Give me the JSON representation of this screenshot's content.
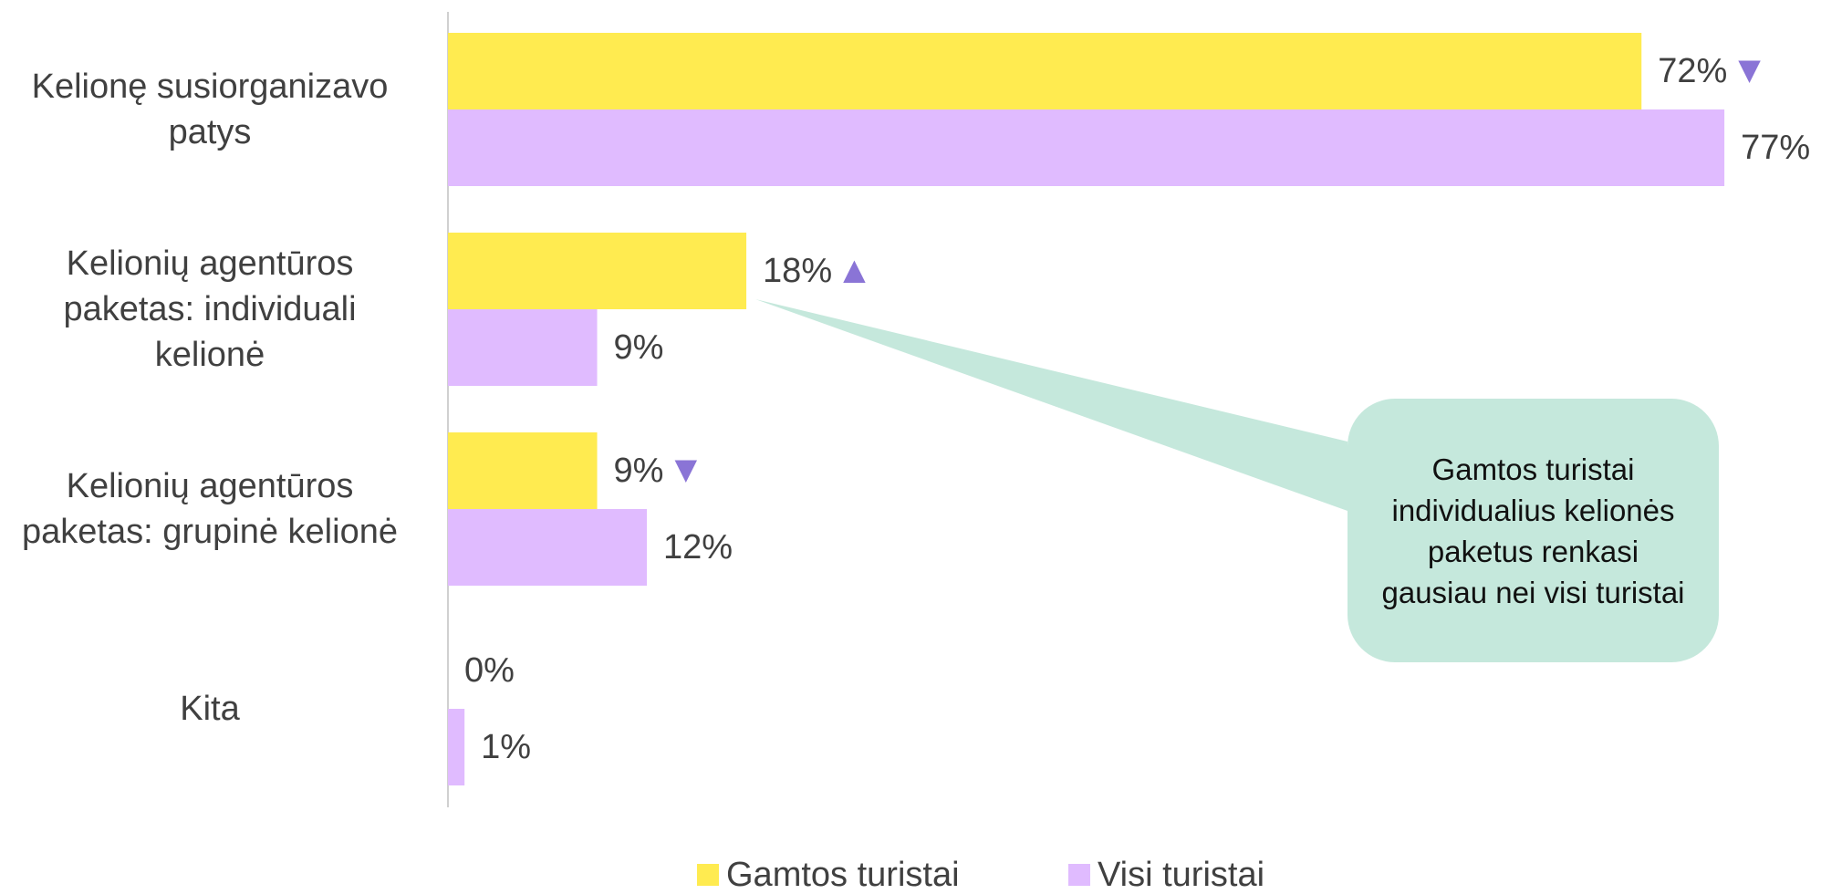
{
  "chart_data": {
    "type": "bar",
    "orientation": "horizontal",
    "categories": [
      "Kelionę susiorganizavo patys",
      "Kelionių agentūros paketas: individuali kelionė",
      "Kelionių agentūros paketas: grupinė kelionė",
      "Kita"
    ],
    "series": [
      {
        "name": "Gamtos turistai",
        "color": "#ffeb50",
        "values": [
          72,
          18,
          9,
          0
        ],
        "value_labels": [
          "72%",
          "18%",
          "9%",
          "0%"
        ],
        "markers": [
          "▼",
          "▲",
          "▼",
          null
        ]
      },
      {
        "name": "Visi turistai",
        "color": "#e0bbff",
        "values": [
          77,
          9,
          12,
          1
        ],
        "value_labels": [
          "77%",
          "9%",
          "12%",
          "1%"
        ]
      }
    ],
    "annotation": "Gamtos turistai individualius kelionės paketus renkasi gausiau nei visi turistai"
  }
}
